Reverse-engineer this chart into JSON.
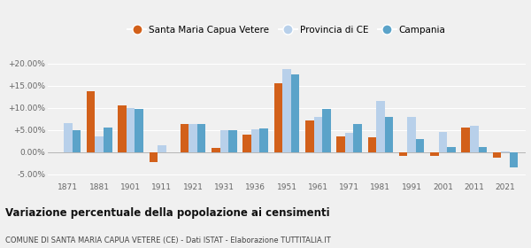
{
  "years": [
    1871,
    1881,
    1901,
    1911,
    1921,
    1931,
    1936,
    1951,
    1961,
    1971,
    1981,
    1991,
    2001,
    2011,
    2021
  ],
  "santa_maria": [
    0.05,
    13.7,
    10.5,
    -2.2,
    6.3,
    1.0,
    4.0,
    15.5,
    7.2,
    3.5,
    3.4,
    -0.9,
    -0.9,
    5.6,
    -1.3
  ],
  "provincia_ce": [
    6.5,
    3.5,
    10.0,
    1.5,
    6.3,
    5.0,
    5.2,
    18.8,
    8.0,
    4.4,
    11.5,
    8.0,
    4.5,
    5.9,
    0.1
  ],
  "campania": [
    5.0,
    5.5,
    9.7,
    null,
    6.3,
    5.0,
    5.4,
    17.5,
    9.7,
    6.3,
    8.0,
    3.0,
    1.1,
    1.1,
    -3.5
  ],
  "color_santa_maria": "#d2601a",
  "color_provincia": "#b8d0ea",
  "color_campania": "#5ba3c9",
  "title": "Variazione percentuale della popolazione ai censimenti",
  "subtitle": "COMUNE DI SANTA MARIA CAPUA VETERE (CE) - Dati ISTAT - Elaborazione TUTTITALIA.IT",
  "legend_labels": [
    "Santa Maria Capua Vetere",
    "Provincia di CE",
    "Campania"
  ],
  "ylim": [
    -6.5,
    21.5
  ],
  "yticks": [
    -5,
    0,
    5,
    10,
    15,
    20
  ],
  "ytick_labels": [
    "-5.00%",
    "0.00%",
    "+5.00%",
    "+10.00%",
    "+15.00%",
    "+20.00%"
  ],
  "bar_width": 0.27,
  "background_color": "#f0f0f0"
}
